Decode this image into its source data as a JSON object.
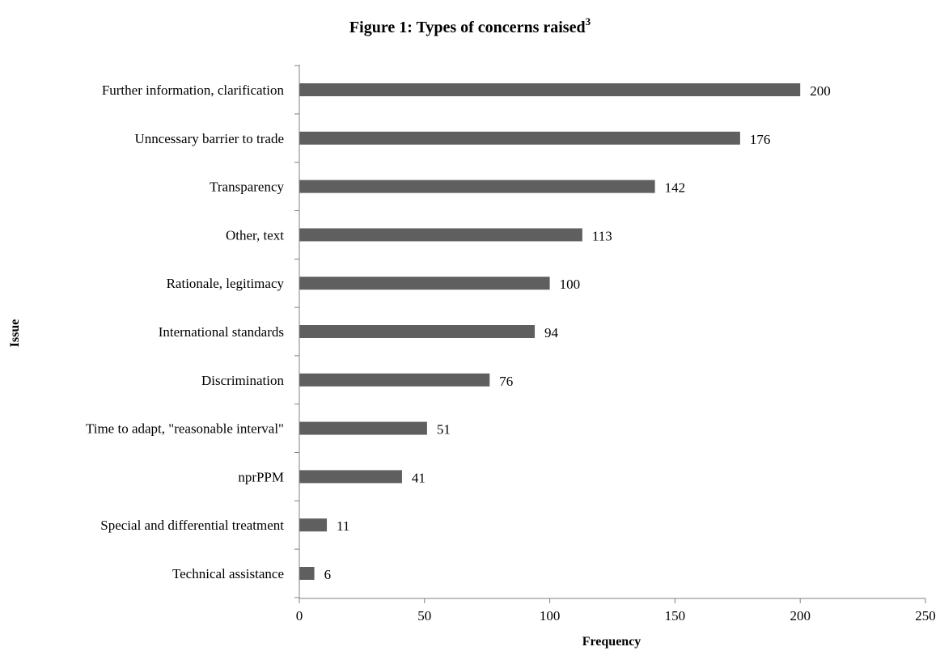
{
  "chart_data": {
    "type": "bar",
    "orientation": "horizontal",
    "title": "Figure 1: Types of concerns raised",
    "title_superscript": "3",
    "xlabel": "Frequency",
    "ylabel": "Issue",
    "xlim": [
      0,
      250
    ],
    "xticks": [
      0,
      50,
      100,
      150,
      200,
      250
    ],
    "grid": false,
    "legend": "none",
    "bar_color": "#5f5f5f",
    "categories": [
      "Further information, clarification",
      "Unncessary barrier to trade",
      "Transparency",
      "Other, text",
      "Rationale, legitimacy",
      "International standards",
      "Discrimination",
      "Time to adapt, \"reasonable interval\"",
      "nprPPM",
      "Special and differential treatment",
      "Technical assistance"
    ],
    "values": [
      200,
      176,
      142,
      113,
      100,
      94,
      76,
      51,
      41,
      11,
      6
    ]
  }
}
